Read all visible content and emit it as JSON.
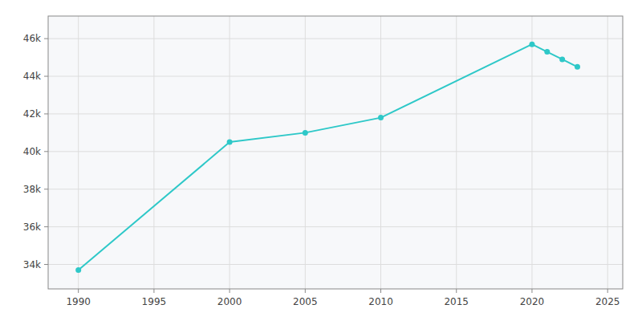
{
  "chart_data": {
    "type": "line",
    "x": [
      1990,
      2000,
      2005,
      2010,
      2020,
      2021,
      2022,
      2023
    ],
    "values": [
      33700,
      40500,
      41000,
      41800,
      45700,
      45300,
      44900,
      44500
    ],
    "color": "#2ec8c8",
    "marker": "circle",
    "xlim": [
      1988,
      2026
    ],
    "ylim": [
      32700,
      47200
    ],
    "xticks": [
      1990,
      1995,
      2000,
      2005,
      2010,
      2015,
      2020,
      2025
    ],
    "yticks": [
      {
        "value": 34000,
        "label": "34k"
      },
      {
        "value": 36000,
        "label": "36k"
      },
      {
        "value": 38000,
        "label": "38k"
      },
      {
        "value": 40000,
        "label": "40k"
      },
      {
        "value": 42000,
        "label": "42k"
      },
      {
        "value": 44000,
        "label": "44k"
      },
      {
        "value": 46000,
        "label": "46k"
      }
    ],
    "grid": true
  }
}
